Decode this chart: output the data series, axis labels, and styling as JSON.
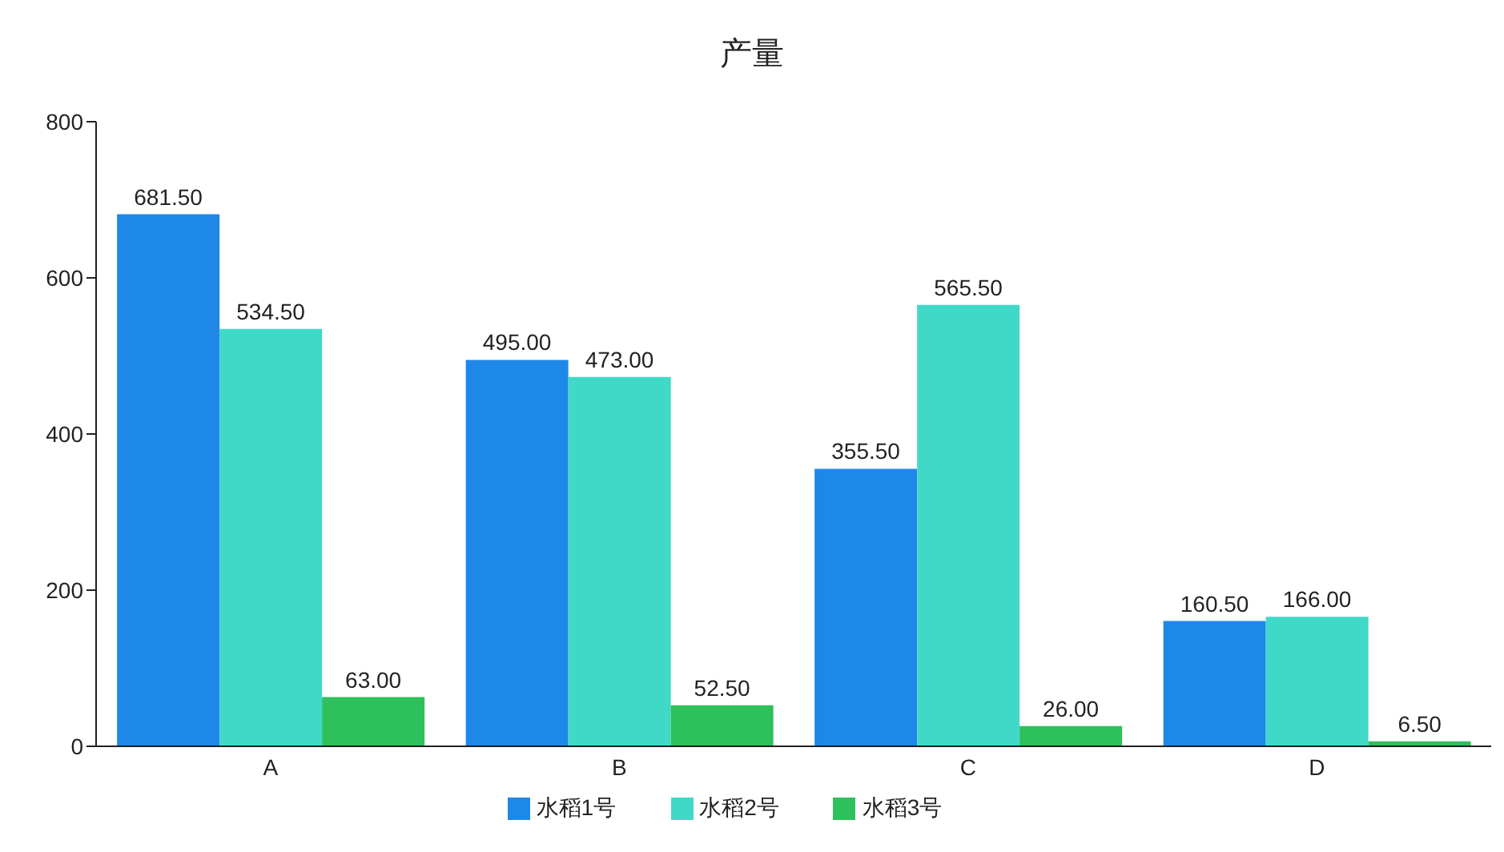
{
  "chart_data": {
    "type": "bar",
    "title": "产量",
    "categories": [
      "A",
      "B",
      "C",
      "D"
    ],
    "series": [
      {
        "name": "水稻1号",
        "color": "#1e88e8",
        "values": [
          681.5,
          495,
          355.5,
          160.5
        ],
        "value_labels": [
          "681.50",
          "495.00",
          "355.50",
          "160.50"
        ]
      },
      {
        "name": "水稻2号",
        "color": "#40d9c8",
        "values": [
          534.5,
          473,
          565.5,
          166
        ],
        "value_labels": [
          "534.50",
          "473.00",
          "565.50",
          "166.00"
        ]
      },
      {
        "name": "水稻3号",
        "color": "#2ec05a",
        "values": [
          63,
          52.5,
          26,
          6.5
        ],
        "value_labels": [
          "63.00",
          "52.50",
          "26.00",
          "6.50"
        ]
      }
    ],
    "ylim": [
      0,
      800
    ],
    "yticks": [
      0,
      200,
      400,
      600,
      800
    ],
    "grid": false,
    "legend": "bottom"
  }
}
